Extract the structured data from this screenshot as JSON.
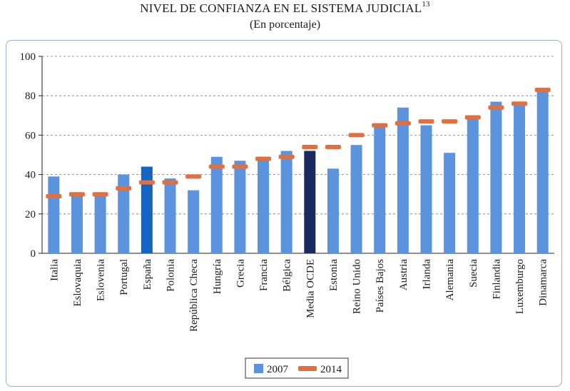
{
  "chart_data": {
    "type": "bar",
    "title": "NIVEL DE CONFIANZA EN EL SISTEMA JUDICIAL",
    "title_superscript": "13",
    "subtitle": "(En porcentaje)",
    "ylim": [
      0,
      100
    ],
    "yticks": [
      0,
      20,
      40,
      60,
      80,
      100
    ],
    "grid": true,
    "legend_position": "bottom-center",
    "categories": [
      "Italia",
      "Eslovaquia",
      "Eslovenia",
      "Portugal",
      "España",
      "Polonia",
      "República Checa",
      "Hungría",
      "Grecia",
      "Francia",
      "Bélgica",
      "Media OCDE",
      "Estonia",
      "Reino Unido",
      "Países Bajos",
      "Austria",
      "Irlanda",
      "Alemania",
      "Suecia",
      "Finlandia",
      "Luxemburgo",
      "Dinamarca"
    ],
    "series": [
      {
        "name": "2007",
        "kind": "bar",
        "color": "#5b93dd",
        "values": [
          39,
          30,
          30,
          40,
          44,
          38,
          32,
          49,
          47,
          48,
          52,
          52,
          43,
          55,
          65,
          74,
          65,
          51,
          69,
          77,
          76,
          84
        ]
      },
      {
        "name": "2014",
        "kind": "marker",
        "color": "#e36f3f",
        "values": [
          29,
          30,
          30,
          33,
          36,
          36,
          39,
          44,
          44,
          48,
          49,
          54,
          54,
          60,
          65,
          66,
          67,
          67,
          69,
          74,
          76,
          83
        ]
      }
    ],
    "highlight": {
      "España": "#1565c0",
      "Media OCDE": "#1a2a5e"
    }
  }
}
